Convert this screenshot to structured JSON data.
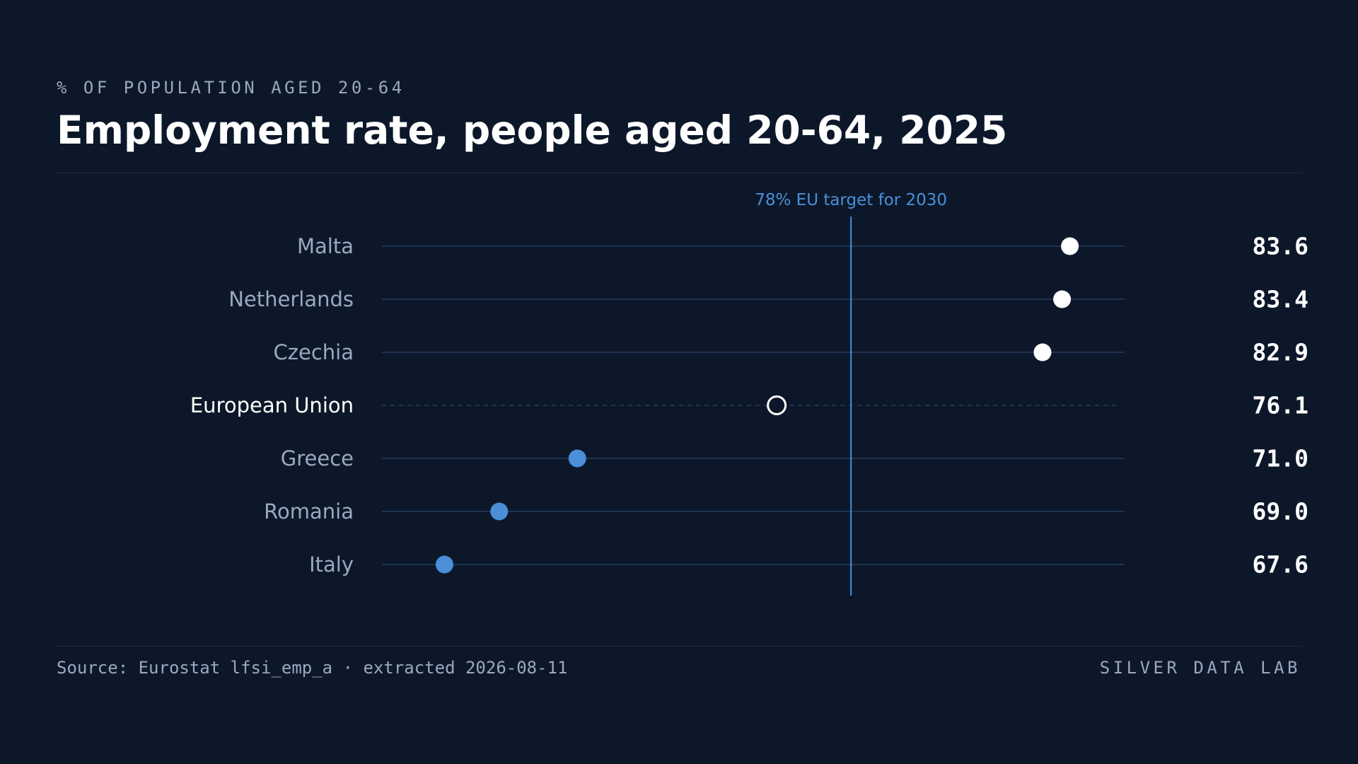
{
  "header": {
    "kicker": "% OF POPULATION AGED 20-64",
    "title": "Employment rate, people aged 20-64, 2025"
  },
  "footer": {
    "source": "Source: Eurostat lfsi_emp_a · extracted 2026-08-11",
    "brand": "SILVER DATA LAB"
  },
  "colors": {
    "background": "#0c1829",
    "above_target": "#ffffff",
    "below_target": "#4a8fd8",
    "reference_line": "#4a8fd8",
    "row_line": "#1d3350",
    "label_muted": "#9aa9bf",
    "label_highlight": "#ffffff"
  },
  "chart_data": {
    "type": "dot",
    "title": "Employment rate, people aged 20-64, 2025",
    "subtitle": "% OF POPULATION AGED 20-64",
    "categories": [
      "Malta",
      "Netherlands",
      "Czechia",
      "European Union",
      "Greece",
      "Romania",
      "Italy"
    ],
    "values": [
      83.6,
      83.4,
      82.9,
      76.1,
      71.0,
      69.0,
      67.6
    ],
    "value_labels": [
      "83.6",
      "83.4",
      "82.9",
      "76.1",
      "71.0",
      "69.0",
      "67.6"
    ],
    "highlight": "European Union",
    "xlim": [
      66,
      85
    ],
    "reference": {
      "value": 78,
      "label": "78% EU target for 2030"
    },
    "grid": false,
    "legend": "none"
  }
}
